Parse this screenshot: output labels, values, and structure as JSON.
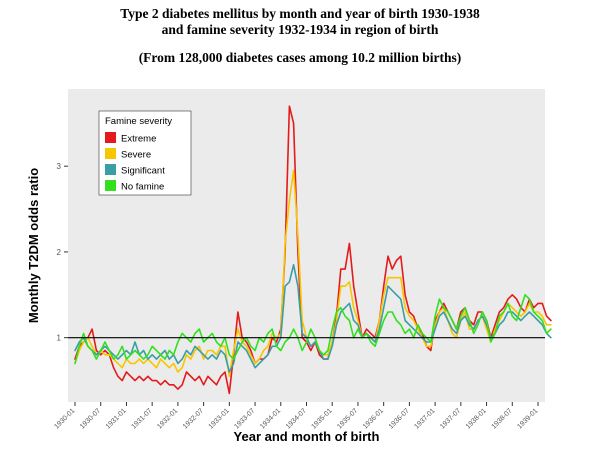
{
  "title_line1": "Type 2 diabetes mellitus by month and year of birth 1930-1938",
  "title_line2": "and famine severity 1932-1934 in region of birth",
  "subtitle": "(From 128,000 diabetes cases among 10.2 million births)",
  "chart_data": {
    "type": "line",
    "xlabel": "Year and month of birth",
    "ylabel": "Monthly T2DM odds ratio",
    "x_start": "1930-01",
    "x_end": "1938-12",
    "x_tick_labels": [
      "1930-01",
      "1930-07",
      "1931-01",
      "1931-07",
      "1932-01",
      "1932-07",
      "1933-01",
      "1933-07",
      "1934-01",
      "1934-07",
      "1935-01",
      "1935-07",
      "1936-01",
      "1936-07",
      "1937-01",
      "1937-07",
      "1938-01",
      "1938-07",
      "1939-01"
    ],
    "y_ticks": [
      1,
      2,
      3
    ],
    "ylim": [
      0.25,
      3.9
    ],
    "reference_line": 1,
    "grid": false,
    "legend_title": "Famine severity",
    "legend_position": "top-left",
    "series": [
      {
        "name": "Extreme",
        "color": "#e41a1c",
        "values": [
          0.75,
          0.9,
          0.95,
          1.0,
          1.1,
          0.85,
          0.8,
          0.85,
          0.8,
          0.65,
          0.55,
          0.5,
          0.6,
          0.55,
          0.5,
          0.55,
          0.5,
          0.55,
          0.5,
          0.5,
          0.45,
          0.5,
          0.45,
          0.45,
          0.4,
          0.45,
          0.6,
          0.55,
          0.5,
          0.55,
          0.45,
          0.55,
          0.5,
          0.45,
          0.55,
          0.6,
          0.35,
          0.8,
          1.3,
          1.0,
          0.95,
          0.85,
          0.7,
          0.75,
          0.75,
          0.8,
          1.0,
          0.95,
          1.1,
          2.0,
          3.7,
          3.5,
          2.0,
          1.0,
          0.95,
          0.85,
          0.95,
          0.8,
          0.75,
          0.75,
          0.95,
          1.25,
          1.8,
          1.8,
          2.1,
          1.6,
          1.3,
          1.0,
          1.1,
          1.05,
          1.0,
          1.2,
          1.6,
          1.95,
          1.8,
          1.9,
          1.95,
          1.5,
          1.3,
          1.25,
          1.1,
          1.05,
          0.9,
          0.85,
          1.2,
          1.3,
          1.4,
          1.3,
          1.2,
          1.1,
          1.3,
          1.35,
          1.2,
          1.15,
          1.3,
          1.3,
          1.2,
          1.0,
          1.15,
          1.3,
          1.35,
          1.45,
          1.5,
          1.45,
          1.35,
          1.3,
          1.45,
          1.35,
          1.4,
          1.4,
          1.25,
          1.2
        ]
      },
      {
        "name": "Severe",
        "color": "#f7c600",
        "values": [
          0.7,
          0.85,
          0.95,
          1.0,
          0.9,
          0.8,
          0.85,
          0.8,
          0.8,
          0.75,
          0.7,
          0.65,
          0.75,
          0.7,
          0.7,
          0.75,
          0.7,
          0.75,
          0.7,
          0.65,
          0.75,
          0.7,
          0.65,
          0.7,
          0.6,
          0.65,
          0.8,
          0.75,
          0.85,
          0.9,
          0.75,
          0.85,
          0.85,
          0.8,
          0.9,
          0.9,
          0.55,
          0.85,
          1.1,
          0.95,
          0.9,
          0.8,
          0.7,
          0.75,
          0.85,
          0.9,
          1.05,
          1.0,
          1.05,
          2.1,
          2.6,
          2.95,
          2.2,
          1.2,
          1.0,
          0.9,
          0.95,
          0.85,
          0.8,
          0.8,
          0.95,
          1.2,
          1.6,
          1.6,
          1.65,
          1.35,
          1.2,
          1.0,
          1.05,
          1.0,
          0.95,
          1.2,
          1.5,
          1.7,
          1.7,
          1.7,
          1.7,
          1.35,
          1.25,
          1.2,
          1.1,
          1.0,
          0.9,
          0.9,
          1.15,
          1.3,
          1.35,
          1.2,
          1.05,
          1.0,
          1.2,
          1.3,
          1.1,
          1.1,
          1.2,
          1.25,
          1.1,
          0.95,
          1.1,
          1.2,
          1.3,
          1.4,
          1.35,
          1.3,
          1.25,
          1.3,
          1.4,
          1.3,
          1.3,
          1.25,
          1.15,
          1.15
        ]
      },
      {
        "name": "Significant",
        "color": "#3a9ea5",
        "values": [
          0.85,
          0.95,
          1.0,
          0.9,
          0.85,
          0.8,
          0.85,
          0.9,
          0.85,
          0.8,
          0.75,
          0.8,
          0.85,
          0.8,
          0.95,
          0.8,
          0.85,
          0.75,
          0.8,
          0.75,
          0.8,
          0.85,
          0.75,
          0.8,
          0.7,
          0.75,
          0.85,
          0.8,
          0.9,
          0.85,
          0.8,
          0.75,
          0.8,
          0.75,
          0.85,
          0.8,
          0.6,
          0.7,
          0.95,
          0.9,
          0.85,
          0.75,
          0.65,
          0.7,
          0.75,
          0.8,
          0.9,
          0.9,
          1.0,
          1.6,
          1.65,
          1.85,
          1.6,
          1.05,
          1.0,
          0.9,
          0.95,
          0.85,
          0.75,
          0.75,
          0.9,
          1.15,
          1.3,
          1.35,
          1.4,
          1.2,
          1.15,
          1.0,
          1.05,
          1.0,
          0.95,
          1.1,
          1.35,
          1.6,
          1.55,
          1.5,
          1.45,
          1.2,
          1.15,
          1.1,
          1.05,
          1.0,
          0.95,
          0.95,
          1.1,
          1.25,
          1.3,
          1.2,
          1.1,
          1.05,
          1.2,
          1.25,
          1.15,
          1.1,
          1.2,
          1.25,
          1.15,
          1.0,
          1.05,
          1.15,
          1.2,
          1.3,
          1.3,
          1.25,
          1.2,
          1.25,
          1.3,
          1.25,
          1.2,
          1.15,
          1.05,
          1.0
        ]
      },
      {
        "name": "No famine",
        "color": "#33e020",
        "values": [
          0.7,
          0.9,
          1.05,
          0.9,
          0.85,
          0.75,
          0.85,
          0.95,
          0.85,
          0.75,
          0.8,
          0.9,
          0.75,
          0.8,
          0.85,
          0.8,
          0.75,
          0.8,
          0.9,
          0.85,
          0.8,
          0.75,
          0.85,
          0.8,
          0.95,
          1.05,
          1.0,
          0.95,
          1.05,
          1.1,
          0.95,
          1.0,
          1.05,
          0.95,
          0.9,
          1.0,
          0.8,
          0.75,
          0.85,
          0.95,
          1.0,
          0.9,
          0.85,
          1.0,
          0.95,
          1.05,
          1.1,
          0.9,
          0.85,
          0.95,
          1.0,
          1.1,
          1.0,
          0.85,
          0.95,
          1.1,
          1.0,
          0.85,
          0.8,
          0.85,
          1.1,
          1.3,
          1.35,
          1.25,
          1.2,
          1.0,
          1.1,
          1.0,
          1.05,
          0.95,
          0.9,
          1.05,
          1.2,
          1.3,
          1.3,
          1.2,
          1.15,
          1.05,
          1.1,
          1.0,
          1.15,
          1.05,
          1.0,
          0.95,
          1.25,
          1.45,
          1.35,
          1.3,
          1.2,
          1.1,
          1.25,
          1.35,
          1.2,
          1.05,
          1.15,
          1.3,
          1.2,
          0.95,
          1.05,
          1.25,
          1.3,
          1.4,
          1.25,
          1.2,
          1.35,
          1.5,
          1.45,
          1.3,
          1.25,
          1.2,
          1.05,
          1.1
        ]
      }
    ]
  }
}
